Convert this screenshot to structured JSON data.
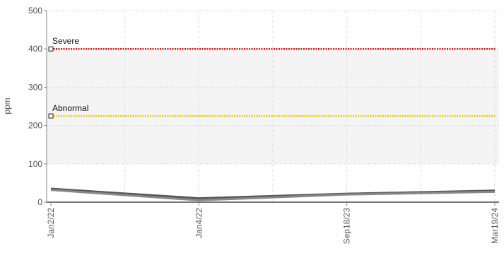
{
  "chart_data": {
    "type": "line",
    "y_label": "ppm",
    "categories": [
      "Jan2/22",
      "Jan4/22",
      "Sep18/23",
      "Mar19/24"
    ],
    "series": [
      {
        "color": "#555555",
        "values": [
          35,
          10,
          22,
          30
        ]
      },
      {
        "color": "#888888",
        "values": [
          32,
          5,
          20,
          27
        ]
      }
    ],
    "thresholds": [
      {
        "label": "Severe",
        "value": 400,
        "color": "#e8141b"
      },
      {
        "label": "Abnormal",
        "value": 225,
        "color": "#f0c800"
      }
    ],
    "shaded_range": [
      100,
      400
    ],
    "ylim": [
      0,
      500
    ],
    "yticks": [
      0,
      100,
      200,
      300,
      400,
      500
    ],
    "grid": true
  }
}
